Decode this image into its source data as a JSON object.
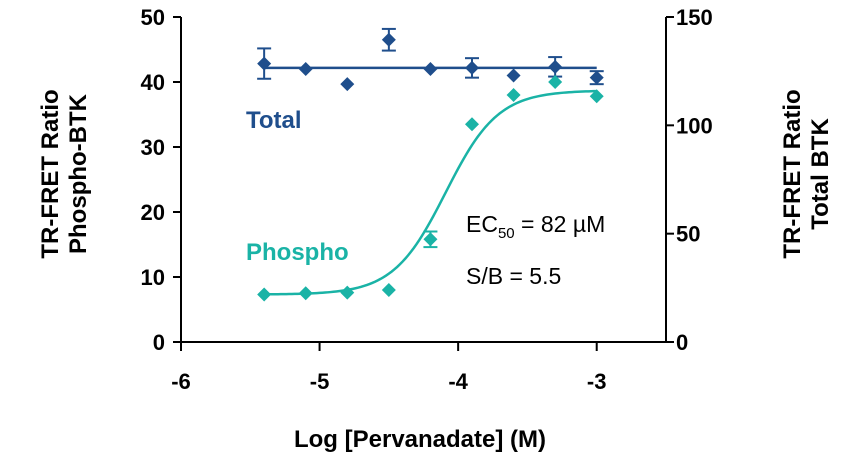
{
  "chart_data": {
    "type": "scatter",
    "xlabel": "Log [Pervanadate] (M)",
    "ylabel_left": [
      "TR-FRET Ratio",
      "Phospho-BTK"
    ],
    "ylabel_right": [
      "TR-FRET Ratio",
      "Total BTK"
    ],
    "xlim": [
      -6,
      -2.5
    ],
    "ylim_left": [
      0,
      50
    ],
    "ylim_right": [
      0,
      150
    ],
    "x_ticks": [
      -6,
      -5,
      -4,
      -3
    ],
    "x_tick_labels": [
      "-6",
      "-5",
      "-4",
      "-3"
    ],
    "y_left_ticks": [
      0,
      10,
      20,
      30,
      40,
      50
    ],
    "y_left_tick_labels": [
      "0",
      "10",
      "20",
      "30",
      "40",
      "50"
    ],
    "y_right_ticks": [
      0,
      50,
      100,
      150
    ],
    "y_right_tick_labels": [
      "0",
      "50",
      "100",
      "150"
    ],
    "series": [
      {
        "name": "Total",
        "axis": "right",
        "color": "#1F4E8C",
        "fit": "flat",
        "fit_value": 126.5,
        "points": [
          {
            "x": -5.4,
            "y": 128.5,
            "err": 7
          },
          {
            "x": -5.1,
            "y": 126,
            "err": 0
          },
          {
            "x": -4.8,
            "y": 119,
            "err": 0
          },
          {
            "x": -4.5,
            "y": 139.5,
            "err": 5
          },
          {
            "x": -4.2,
            "y": 126,
            "err": 0
          },
          {
            "x": -3.9,
            "y": 126.5,
            "err": 4.5
          },
          {
            "x": -3.6,
            "y": 123,
            "err": 0
          },
          {
            "x": -3.3,
            "y": 127,
            "err": 4.5
          },
          {
            "x": -3.0,
            "y": 122,
            "err": 3
          }
        ]
      },
      {
        "name": "Phospho",
        "axis": "left",
        "color": "#1AB3A6",
        "fit": "sigmoid",
        "fit_params": {
          "bottom": 7.3,
          "top": 38.7,
          "log_ec50": -4.09,
          "hill": 2.3
        },
        "points": [
          {
            "x": -5.4,
            "y": 7.3,
            "err": 0
          },
          {
            "x": -5.1,
            "y": 7.5,
            "err": 0
          },
          {
            "x": -4.8,
            "y": 7.6,
            "err": 0
          },
          {
            "x": -4.5,
            "y": 8.0,
            "err": 0
          },
          {
            "x": -4.2,
            "y": 15.8,
            "err": 1.2
          },
          {
            "x": -3.9,
            "y": 33.5,
            "err": 0
          },
          {
            "x": -3.6,
            "y": 38.0,
            "err": 0
          },
          {
            "x": -3.3,
            "y": 40.0,
            "err": 0
          },
          {
            "x": -3.0,
            "y": 37.8,
            "err": 0
          }
        ]
      }
    ],
    "annotations": {
      "ec50_prefix": "EC",
      "ec50_sub": "50",
      "ec50_value": " = 82 µM",
      "sb": "S/B = 5.5"
    }
  }
}
